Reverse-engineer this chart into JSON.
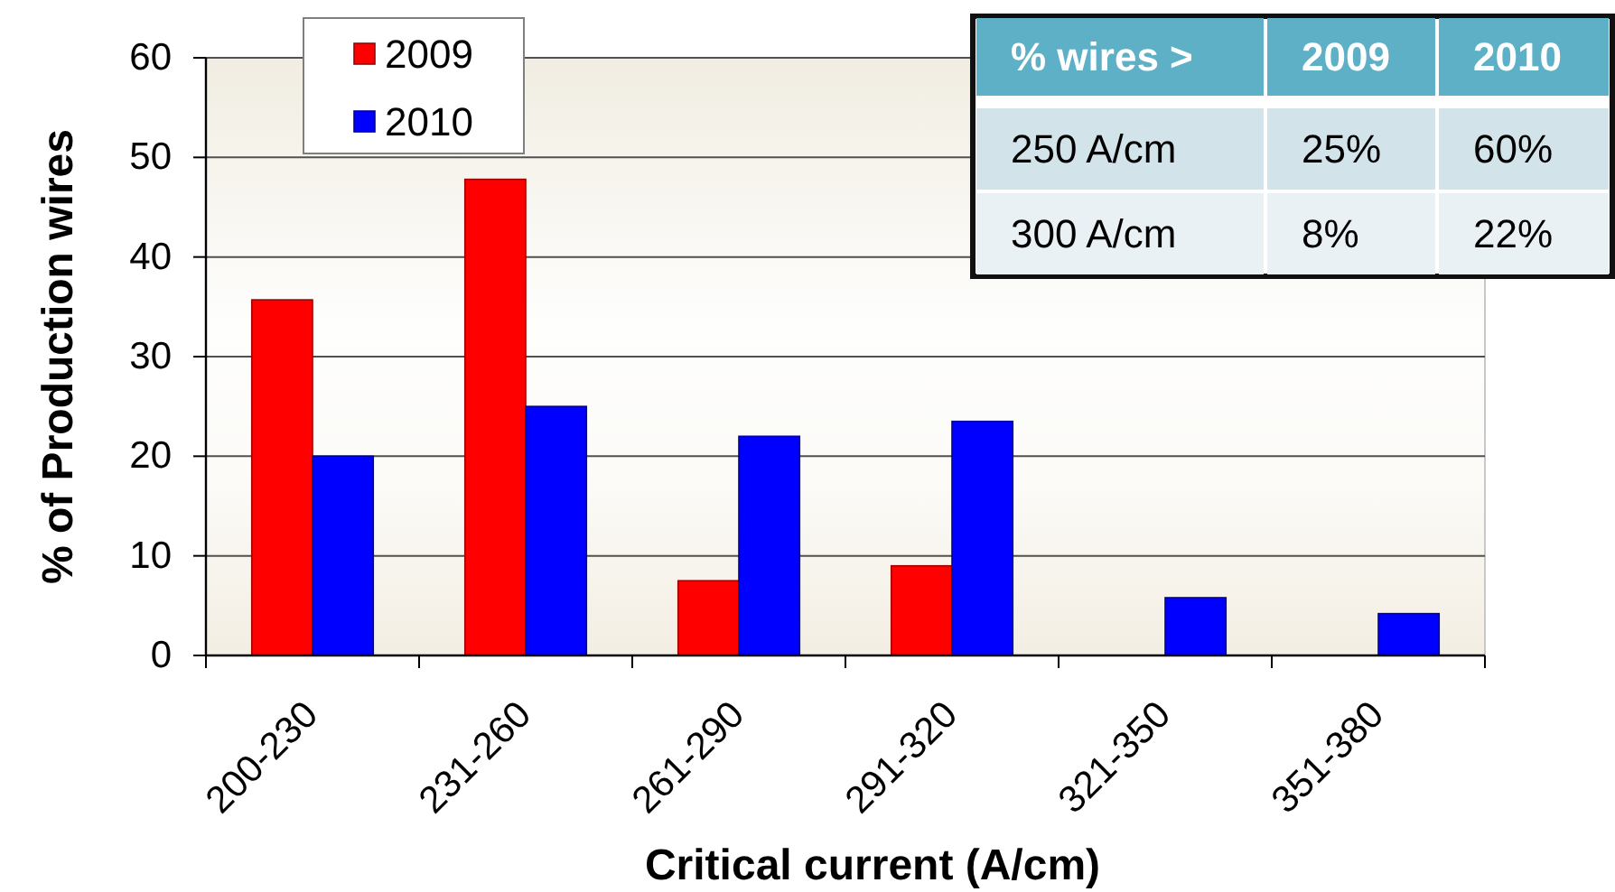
{
  "chart_data": {
    "type": "bar",
    "xlabel": "Critical current (A/cm)",
    "ylabel": "% of Production wires",
    "categories": [
      "200-230",
      "231-260",
      "261-290",
      "291-320",
      "321-350",
      "351-380"
    ],
    "series": [
      {
        "name": "2009",
        "color": "#ff0000",
        "values": [
          35.7,
          47.8,
          7.5,
          9,
          null,
          null
        ]
      },
      {
        "name": "2010",
        "color": "#0000ff",
        "values": [
          20,
          25,
          22,
          23.5,
          5.8,
          4.2
        ]
      }
    ],
    "ylim": [
      0,
      60
    ],
    "yticks": [
      0,
      10,
      20,
      30,
      40,
      50,
      60
    ],
    "grid": "y",
    "legend": "top left",
    "annotations": [
      "% wires >",
      "2009",
      "2010",
      "250 A/cm",
      "25%",
      "60%",
      "300 A/cm",
      "8%",
      "22%"
    ]
  }
}
